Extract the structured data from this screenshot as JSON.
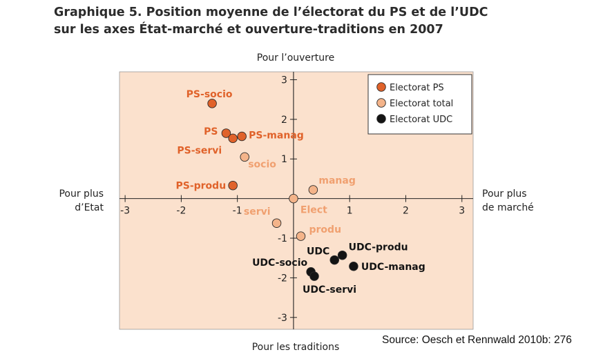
{
  "title": {
    "line1": "Graphique 5.  Position moyenne de l’électorat du PS et de l’UDC",
    "line2": "sur les axes État-marché et ouverture-traditions en 2007"
  },
  "source": "Source: Oesch et Rennwald 2010b: 276",
  "colors": {
    "plot_bg": "#fbe1cd",
    "ps": "#e0622a",
    "total": "#f4b48a",
    "udc": "#141414",
    "ps_label": "#e0622a",
    "total_label": "#f0a070",
    "udc_label": "#141414",
    "axis": "#222222"
  },
  "chart_data": {
    "type": "scatter",
    "axis_labels": {
      "top": "Pour l’ouverture",
      "bottom": "Pour les traditions",
      "left": [
        "Pour plus",
        "d’Etat"
      ],
      "right": [
        "Pour plus",
        "de marché"
      ]
    },
    "xlim": [
      -3.1,
      3.2
    ],
    "ylim": [
      -3.3,
      3.2
    ],
    "x_ticks": [
      -3,
      -2,
      -1,
      1,
      2,
      3
    ],
    "y_ticks": [
      3,
      2,
      1,
      -1,
      -2,
      -3
    ],
    "legend": {
      "position": "top-right",
      "entries": [
        {
          "label": "Electorat PS",
          "group": "ps"
        },
        {
          "label": "Electorat total",
          "group": "total"
        },
        {
          "label": "Electorat UDC",
          "group": "udc"
        }
      ]
    },
    "series": [
      {
        "name": "Electorat PS",
        "group": "ps",
        "points": [
          {
            "label": "PS-socio",
            "x": -1.45,
            "y": 2.4
          },
          {
            "label": "PS",
            "x": -1.2,
            "y": 1.65
          },
          {
            "label": "PS-servi",
            "x": -1.08,
            "y": 1.52
          },
          {
            "label": "PS-manag",
            "x": -0.92,
            "y": 1.57
          },
          {
            "label": "PS-produ",
            "x": -1.08,
            "y": 0.33
          }
        ]
      },
      {
        "name": "Electorat total",
        "group": "total",
        "points": [
          {
            "label": "socio",
            "x": -0.87,
            "y": 1.05
          },
          {
            "label": "manag",
            "x": 0.35,
            "y": 0.22
          },
          {
            "label": "Elect",
            "x": 0.0,
            "y": 0.0
          },
          {
            "label": "servi",
            "x": -0.3,
            "y": -0.62
          },
          {
            "label": "produ",
            "x": 0.13,
            "y": -0.95
          }
        ]
      },
      {
        "name": "Electorat UDC",
        "group": "udc",
        "points": [
          {
            "label": "UDC",
            "x": 0.73,
            "y": -1.55
          },
          {
            "label": "UDC-produ",
            "x": 0.87,
            "y": -1.43
          },
          {
            "label": "UDC-manag",
            "x": 1.07,
            "y": -1.71
          },
          {
            "label": "UDC-socio",
            "x": 0.31,
            "y": -1.85
          },
          {
            "label": "UDC-servi",
            "x": 0.37,
            "y": -1.96
          }
        ]
      }
    ]
  }
}
